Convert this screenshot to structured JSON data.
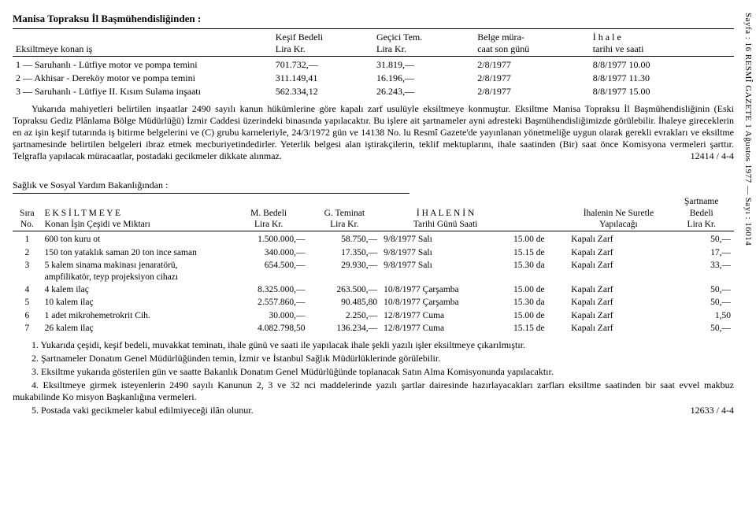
{
  "side": "Sayfa : 16        RESMÎ GAZETE        1 Ağustos 1977 — Sayı : 16014",
  "header": "Manisa Topraksu İl Başmühendisliğinden :",
  "top": {
    "col0": "Eksiltmeye konan iş",
    "col1": "Keşif Bedeli\nLira  Kr.",
    "col2": "Geçici Tem.\nLira  Kr.",
    "col3": "Belge müra-\ncaat son günü",
    "col4": "İ h a l e\ntarihi ve saati",
    "rows": [
      {
        "i": "1",
        "d": "— Saruhanlı - Lütfiye motor ve pompa temini",
        "k": "701.732,—",
        "g": "31.819,—",
        "b": "2/8/1977",
        "t": "8/8/1977  10.00"
      },
      {
        "i": "2",
        "d": "— Akhisar - Dereköy motor ve pompa temini",
        "k": "311.149,41",
        "g": "16.196,—",
        "b": "2/8/1977",
        "t": "8/8/1977  11.30"
      },
      {
        "i": "3",
        "d": "— Saruhanlı - Lütfiye II. Kısım Sulama inşaatı",
        "k": "562.334,12",
        "g": "26.243,—",
        "b": "2/8/1977",
        "t": "8/8/1977  15.00"
      }
    ]
  },
  "para1": "Yukarıda mahiyetleri belirtilen inşaatlar 2490 sayılı kanun hükümlerine göre kapalı zarf usulüyle eksiltmeye konmuştur. Eksiltme Manisa Topraksu İl Başmühendisliğinin (Eski Topraksu Gediz Plânlama Bölge Müdürlüğü) İzmir Caddesi üzerindeki binasında yapılacaktır. Bu işlere ait şartnameler ayni adresteki Başmühendisliğimizde görülebilir. İhaleye gireceklerin en az işin keşif tutarında iş bitirme belgelerini ve (C) grubu karneleriyle, 24/3/1972 gün ve 14138 No. lu Resmî Gazete'de yayınlanan yönetmeliğe uygun olarak gerekli evrakları ve eksiltme şartnamesinde belirtilen belgeleri ibraz etmek mecburiyetindedirler. Yeterlik belgesi alan iştirakçilerin, teklif mektuplarını, ihale saatinden (Bir) saat önce Komisyona vermeleri şarttır. Telgrafla yapılacak müracaatlar, postadaki gecikmeler dikkate alınmaz.",
  "para1_right": "12414 / 4-4",
  "sub": "Sağlık ve Sosyal Yardım Bakanlığından :",
  "bottom": {
    "h_sira": "Sıra\nNo.",
    "h_cesit": "E K S İ L T M E Y E\nKonan İşin Çeşidi ve Miktarı",
    "h_bedel": "M. Bedeli\nLira Kr.",
    "h_tem": "G. Teminat\nLira Kr.",
    "h_ihale": "İ H A L E N İ N\nTarihi Günü Saati",
    "h_suret": "İhalenin Ne Suretle\nYapılacağı",
    "h_sart": "Şartname\nBedeli\nLira Kr.",
    "rows": [
      {
        "n": "1",
        "d": "600 ton kuru ot",
        "m": "1.500.000,—",
        "g": "58.750,—",
        "t": "9/8/1977 Salı",
        "s": "15.00 de",
        "y": "Kapalı Zarf",
        "b": "50,—"
      },
      {
        "n": "2",
        "d": "150 ton yataklık saman 20 ton ince saman",
        "m": "340.000,—",
        "g": "17.350,—",
        "t": "9/8/1977 Salı",
        "s": "15.15 de",
        "y": "Kapalı Zarf",
        "b": "17,—"
      },
      {
        "n": "3",
        "d": "5 kalem sinama makinası jenaratörü, ampfilikatör, teyp projeksiyon cihazı",
        "m": "654.500,—",
        "g": "29.930,—",
        "t": "9/8/1977 Salı",
        "s": "15.30 da",
        "y": "Kapalı Zarf",
        "b": "33,—"
      },
      {
        "n": "4",
        "d": "4 kalem ilaç",
        "m": "8.325.000,—",
        "g": "263.500,—",
        "t": "10/8/1977 Çarşamba",
        "s": "15.00 de",
        "y": "Kapalı Zarf",
        "b": "50,—"
      },
      {
        "n": "5",
        "d": "10 kalem ilaç",
        "m": "2.557.860,—",
        "g": "90.485,80",
        "t": "10/8/1977 Çarşamba",
        "s": "15.30 da",
        "y": "Kapalı Zarf",
        "b": "50,—"
      },
      {
        "n": "6",
        "d": "1 adet mikrohemetrokrit Cih.",
        "m": "30.000,—",
        "g": "2.250,—",
        "t": "12/8/1977 Cuma",
        "s": "15.00 de",
        "y": "Kapalı Zarf",
        "b": "1,50"
      },
      {
        "n": "7",
        "d": "26 kalem ilaç",
        "m": "4.082.798,50",
        "g": "136.234,—",
        "t": "12/8/1977 Cuma",
        "s": "15.15 de",
        "y": "Kapalı Zarf",
        "b": "50,—"
      }
    ]
  },
  "notes": {
    "n1": "1. Yukarıda çeşidi, keşif bedeli, muvakkat teminatı, ihale günü ve saati ile yapılacak ihale şekli yazılı işler eksiltmeye çıkarılmıştır.",
    "n2": "2. Şartnameler Donatım Genel Müdürlüğünden temin, İzmir ve İstanbul Sağlık Müdürlüklerinde görülebilir.",
    "n3": "3. Eksiltme yukarıda gösterilen gün ve saatte Bakanlık Donatım Genel Müdürlüğünde toplanacak Satın Alma Komisyonunda yapılacaktır.",
    "n4": "4. Eksiltmeye girmek isteyenlerin 2490 sayılı Kanunun 2, 3 ve 32 nci maddelerinde yazılı şartlar dairesinde hazırlayacakları zarfları eksiltme saatinden bir saat evvel makbuz mukabilinde Ko misyon Başkanlığına vermeleri.",
    "n5": "5. Postada vaki gecikmeler kabul edilmiyeceği ilân olunur.",
    "n5_right": "12633 / 4-4"
  }
}
